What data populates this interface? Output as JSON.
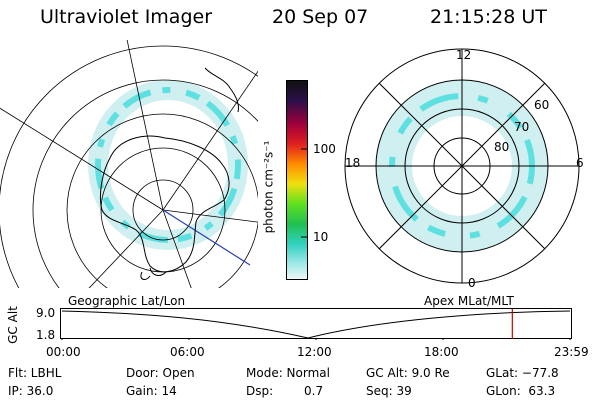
{
  "header": {
    "instrument": "Ultraviolet Imager",
    "date": "20 Sep 07",
    "time": "21:15:28 UT"
  },
  "colorbar": {
    "unit_label": "photon cm⁻²s⁻¹",
    "ticks": [
      {
        "value": 100,
        "label": "100"
      },
      {
        "value": 10,
        "label": "10"
      }
    ],
    "scale": "log"
  },
  "mlat_map": {
    "mlt_labels": [
      "12",
      "18",
      "6",
      "0"
    ],
    "mlat_labels": [
      "60",
      "70",
      "80"
    ]
  },
  "timeline": {
    "left_title": "Geographic Lat/Lon",
    "right_title": "Apex MLat/MLT",
    "axis_label": "GC Alt",
    "y_ticks": [
      "9.0",
      "1.8"
    ],
    "x_ticks": [
      "00:00",
      "06:00",
      "12:00",
      "18:00",
      "23:59"
    ],
    "current_time_hours": 21.26,
    "marker_color": "#cc0000"
  },
  "info": {
    "filter": "Flt: LBHL",
    "ip": "IP: 36.0",
    "door": "Door: Open",
    "gain": "Gain: 14",
    "mode": "Mode: Normal",
    "dsp_label": "Dsp:",
    "dsp_value": "0.7",
    "gc_alt": "GC Alt: 9.0 Re",
    "seq": "Seq: 39",
    "glat": "GLat: −77.8",
    "glon": "GLon:  63.3"
  },
  "colors": {
    "aurora": "#5fe0e0",
    "aurora_light": "#cfeff0",
    "axis_blue": "#2a3fb5"
  }
}
